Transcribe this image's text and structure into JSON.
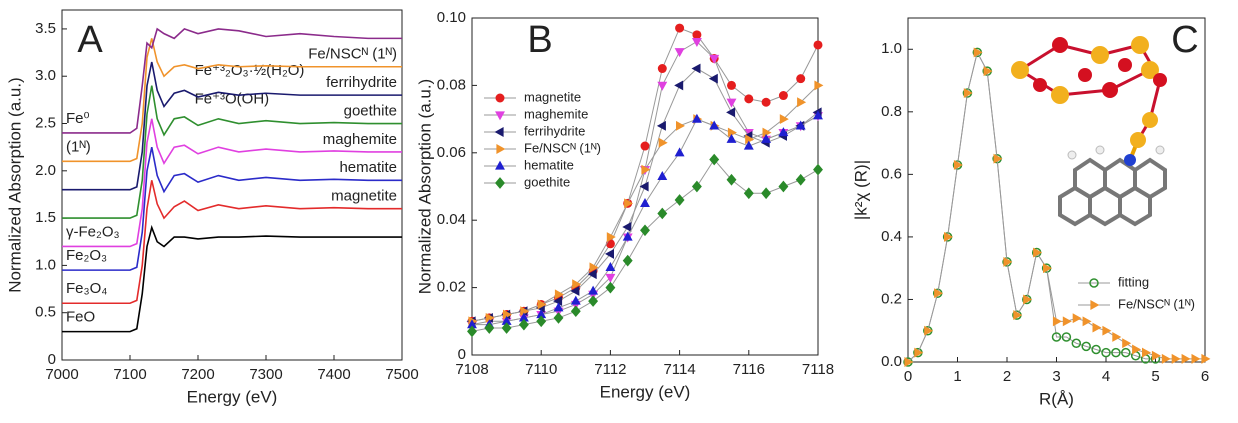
{
  "chart_data": [
    {
      "type": "line",
      "panel_label": "A",
      "x_label": "Energy (eV)",
      "y_label": "Normalized Absorption (a.u.)",
      "xlim": [
        7000,
        7500
      ],
      "xticks": [
        7000,
        7100,
        7200,
        7300,
        7400,
        7500
      ],
      "ylim": [
        0,
        3.7
      ],
      "yticks": [
        0,
        0.5,
        {
          "value": 1,
          "label": "1.0"
        },
        1.5,
        {
          "value": 2,
          "label": "2.0"
        },
        2.5,
        {
          "value": 3,
          "label": "3.0"
        },
        3.5
      ],
      "x": [
        7000,
        7100,
        7110,
        7118,
        7125,
        7132,
        7140,
        7150,
        7165,
        7180,
        7200,
        7230,
        7260,
        7300,
        7350,
        7400,
        7450,
        7500
      ],
      "series": [
        {
          "left_label": "FeO",
          "color": "#000000",
          "values": [
            0.3,
            0.3,
            0.33,
            0.7,
            1.2,
            1.4,
            1.25,
            1.2,
            1.3,
            1.3,
            1.28,
            1.3,
            1.3,
            1.31,
            1.3,
            1.3,
            1.3,
            1.3
          ]
        },
        {
          "name": "magnetite",
          "left_label": "Fe₃O₄",
          "color": "#e32b2b",
          "values": [
            0.6,
            0.6,
            0.63,
            1.0,
            1.6,
            1.9,
            1.65,
            1.5,
            1.62,
            1.68,
            1.58,
            1.64,
            1.6,
            1.63,
            1.6,
            1.61,
            1.6,
            1.6
          ]
        },
        {
          "name": "hematite",
          "left_label": "Fe₂O₃",
          "color": "#2b2bc9",
          "values": [
            0.95,
            0.95,
            0.98,
            1.35,
            2.0,
            2.25,
            1.95,
            1.78,
            1.95,
            1.97,
            1.88,
            1.95,
            1.9,
            1.93,
            1.9,
            1.91,
            1.9,
            1.9
          ]
        },
        {
          "name": "maghemite",
          "left_label": "γ-Fe₂O₃",
          "color": "#e040e0",
          "values": [
            1.2,
            1.2,
            1.23,
            1.6,
            2.3,
            2.55,
            2.25,
            2.08,
            2.25,
            2.27,
            2.18,
            2.25,
            2.2,
            2.23,
            2.2,
            2.21,
            2.2,
            2.2
          ]
        },
        {
          "name": "goethite",
          "formula": "Fe⁺³O(OH)",
          "color": "#2f8f2f",
          "values": [
            1.5,
            1.5,
            1.53,
            1.9,
            2.6,
            2.9,
            2.55,
            2.38,
            2.55,
            2.57,
            2.48,
            2.55,
            2.5,
            2.53,
            2.5,
            2.51,
            2.5,
            2.5
          ]
        },
        {
          "name": "ferrihydrite",
          "formula": "Fe⁺³₂O₃·½(H₂O)",
          "color": "#1a1a6e",
          "values": [
            1.8,
            1.8,
            1.83,
            2.2,
            2.9,
            3.15,
            2.85,
            2.68,
            2.82,
            2.85,
            2.78,
            2.83,
            2.8,
            2.82,
            2.8,
            2.8,
            2.8,
            2.8
          ]
        },
        {
          "name": "Fe/NSCᴺ (1ᴺ)",
          "left_label": "(1ᴺ)",
          "color": "#f0932b",
          "values": [
            2.1,
            2.1,
            2.13,
            2.5,
            3.2,
            3.4,
            3.15,
            3.0,
            3.1,
            3.12,
            3.08,
            3.12,
            3.1,
            3.11,
            3.1,
            3.1,
            3.1,
            3.1
          ]
        },
        {
          "left_label": "Fe⁰",
          "color": "#8b2b8b",
          "values": [
            2.4,
            2.4,
            2.45,
            2.9,
            3.35,
            3.3,
            3.5,
            3.45,
            3.4,
            3.5,
            3.45,
            3.5,
            3.48,
            3.42,
            3.45,
            3.42,
            3.4,
            3.4
          ]
        }
      ]
    },
    {
      "type": "line",
      "panel_label": "B",
      "x_label": "Energy (eV)",
      "y_label": "Normalized Absorption (a.u.)",
      "legend": "center-left",
      "xlim": [
        7108,
        7118
      ],
      "xticks": [
        7108,
        7110,
        7112,
        7114,
        7116,
        7118
      ],
      "ylim": [
        0,
        0.1
      ],
      "yticks": [
        0,
        0.02,
        0.04,
        0.06,
        0.08,
        {
          "value": 0.1,
          "label": "0.10"
        }
      ],
      "x": [
        7108,
        7108.5,
        7109,
        7109.5,
        7110,
        7110.5,
        7111,
        7111.5,
        7112,
        7112.5,
        7113,
        7113.5,
        7114,
        7114.5,
        7115,
        7115.5,
        7116,
        7116.5,
        7117,
        7117.5,
        7118
      ],
      "series": [
        {
          "name": "magnetite",
          "color": "#e51e1e",
          "marker": "circle",
          "values": [
            0.01,
            0.011,
            0.012,
            0.013,
            0.015,
            0.017,
            0.02,
            0.025,
            0.033,
            0.045,
            0.062,
            0.085,
            0.097,
            0.095,
            0.088,
            0.08,
            0.076,
            0.075,
            0.077,
            0.082,
            0.092
          ]
        },
        {
          "name": "maghemite",
          "color": "#e040e0",
          "marker": "triangle-down",
          "values": [
            0.009,
            0.01,
            0.01,
            0.011,
            0.012,
            0.013,
            0.015,
            0.018,
            0.023,
            0.035,
            0.055,
            0.08,
            0.09,
            0.093,
            0.088,
            0.075,
            0.066,
            0.064,
            0.066,
            0.068,
            0.071
          ]
        },
        {
          "name": "ferrihydrite",
          "color": "#1a1a6e",
          "marker": "triangle-left",
          "values": [
            0.01,
            0.011,
            0.012,
            0.013,
            0.014,
            0.016,
            0.019,
            0.024,
            0.03,
            0.038,
            0.05,
            0.068,
            0.08,
            0.085,
            0.082,
            0.072,
            0.065,
            0.063,
            0.065,
            0.068,
            0.072
          ]
        },
        {
          "name": "Fe/NSCᴺ (1ᴺ)",
          "color": "#f0932b",
          "marker": "triangle-right",
          "values": [
            0.01,
            0.011,
            0.012,
            0.013,
            0.015,
            0.018,
            0.021,
            0.026,
            0.035,
            0.045,
            0.055,
            0.063,
            0.068,
            0.07,
            0.068,
            0.066,
            0.064,
            0.066,
            0.07,
            0.075,
            0.08
          ]
        },
        {
          "name": "hematite",
          "color": "#1f1fd0",
          "marker": "triangle-up",
          "values": [
            0.009,
            0.009,
            0.01,
            0.011,
            0.012,
            0.014,
            0.016,
            0.019,
            0.026,
            0.035,
            0.045,
            0.053,
            0.06,
            0.07,
            0.068,
            0.064,
            0.062,
            0.064,
            0.066,
            0.068,
            0.071
          ]
        },
        {
          "name": "goethite",
          "color": "#2a8a2a",
          "marker": "diamond",
          "values": [
            0.007,
            0.008,
            0.008,
            0.009,
            0.01,
            0.011,
            0.013,
            0.016,
            0.02,
            0.028,
            0.037,
            0.042,
            0.046,
            0.05,
            0.058,
            0.052,
            0.048,
            0.048,
            0.05,
            0.052,
            0.055
          ]
        }
      ]
    },
    {
      "type": "line",
      "panel_label": "C",
      "x_label": "R(Å)",
      "y_label": "|k²χ (R)|",
      "legend": "center-right",
      "xlim": [
        0,
        6
      ],
      "xticks": [
        0,
        1,
        2,
        3,
        4,
        5,
        6
      ],
      "ylim": [
        0,
        1.1
      ],
      "yticks": [
        {
          "value": 0,
          "label": "0.0"
        },
        0.2,
        0.4,
        0.6,
        0.8,
        {
          "value": 1,
          "label": "1.0"
        }
      ],
      "x": [
        0,
        0.2,
        0.4,
        0.6,
        0.8,
        1.0,
        1.2,
        1.4,
        1.6,
        1.8,
        2.0,
        2.2,
        2.4,
        2.6,
        2.8,
        3.0,
        3.2,
        3.4,
        3.6,
        3.8,
        4.0,
        4.2,
        4.4,
        4.6,
        4.8,
        5.0,
        5.2,
        5.4,
        5.6,
        5.8,
        6.0
      ],
      "series": [
        {
          "name": "fitting",
          "color": "#2f8f2f",
          "marker": "open-circle",
          "values": [
            0,
            0.03,
            0.1,
            0.22,
            0.4,
            0.63,
            0.86,
            0.99,
            0.93,
            0.65,
            0.32,
            0.15,
            0.2,
            0.35,
            0.3,
            0.08,
            0.08,
            0.06,
            0.05,
            0.04,
            0.03,
            0.03,
            0.03,
            0.02,
            0.01,
            0.01,
            null,
            null,
            null,
            null,
            null
          ]
        },
        {
          "name": "Fe/NSCᴺ (1ᴺ)",
          "color": "#f0932b",
          "marker": "triangle-right",
          "values": [
            0,
            0.03,
            0.1,
            0.22,
            0.4,
            0.63,
            0.86,
            0.99,
            0.93,
            0.65,
            0.32,
            0.15,
            0.2,
            0.35,
            0.3,
            0.13,
            0.13,
            0.14,
            0.13,
            0.11,
            0.1,
            0.08,
            0.06,
            0.04,
            0.03,
            0.02,
            0.01,
            0.01,
            0.01,
            0.01,
            0.01
          ]
        }
      ]
    }
  ]
}
